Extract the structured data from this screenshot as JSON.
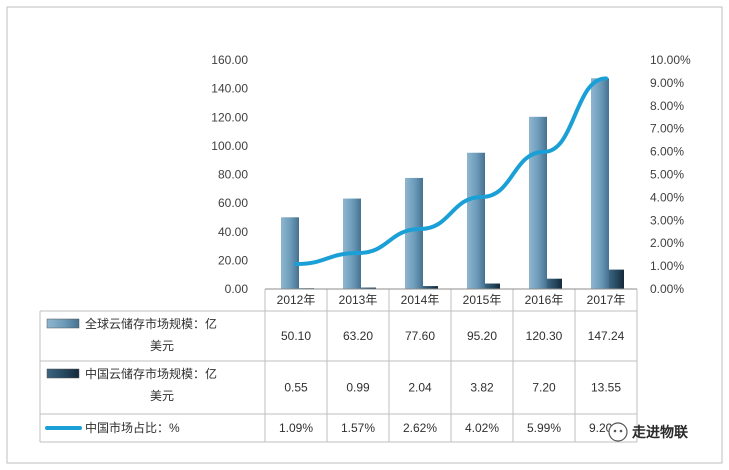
{
  "chart_data": {
    "type": "bar",
    "categories": [
      "2012年",
      "2013年",
      "2014年",
      "2015年",
      "2016年",
      "2017年"
    ],
    "series": [
      {
        "name": "全球云储存市场规模：亿美元",
        "legend_lines": [
          "全球云储存市场规模：亿",
          "美元"
        ],
        "type": "bar",
        "axis": "left",
        "color": "#6b9ab8",
        "values": [
          50.1,
          63.2,
          77.6,
          95.2,
          120.3,
          147.24
        ],
        "labels": [
          "50.10",
          "63.20",
          "77.60",
          "95.20",
          "120.30",
          "147.24"
        ]
      },
      {
        "name": "中国云储存市场规模：亿美元",
        "legend_lines": [
          "中国云储存市场规模：亿",
          "美元"
        ],
        "type": "bar",
        "axis": "left",
        "color": "#24475e",
        "values": [
          0.55,
          0.99,
          2.04,
          3.82,
          7.2,
          13.55
        ],
        "labels": [
          "0.55",
          "0.99",
          "2.04",
          "3.82",
          "7.20",
          "13.55"
        ]
      },
      {
        "name": "中国市场占比：%",
        "legend_lines": [
          "中国市场占比：%"
        ],
        "type": "line",
        "axis": "right",
        "color": "#1aa0d6",
        "values": [
          1.09,
          1.57,
          2.62,
          4.02,
          5.99,
          9.2
        ],
        "labels": [
          "1.09%",
          "1.57%",
          "2.62%",
          "4.02%",
          "5.99%",
          "9.20%"
        ]
      }
    ],
    "y_left": {
      "range": [
        0,
        160
      ],
      "ticks": [
        "0.00",
        "20.00",
        "40.00",
        "60.00",
        "80.00",
        "100.00",
        "120.00",
        "140.00",
        "160.00"
      ]
    },
    "y_right": {
      "range": [
        0,
        10
      ],
      "ticks": [
        "0.00%",
        "1.00%",
        "2.00%",
        "3.00%",
        "4.00%",
        "5.00%",
        "6.00%",
        "7.00%",
        "8.00%",
        "9.00%",
        "10.00%"
      ]
    },
    "grid": false,
    "legend": "data-table"
  },
  "watermark": "走进物联"
}
